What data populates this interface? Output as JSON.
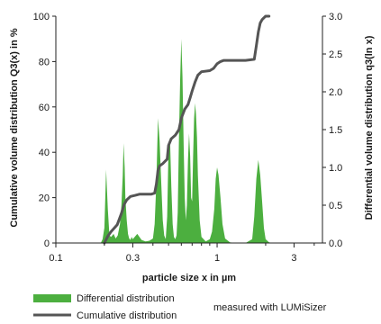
{
  "chart_data": {
    "type": "area",
    "title": "",
    "xlabel": "particle size x in µm",
    "ylabel_left": "Cumulative volume distribution Q3(x) in %",
    "ylabel_right": "Differential volume distribution q3(ln x)",
    "x_scale": "log",
    "xlim": [
      0.1,
      4.5
    ],
    "x_ticks": [
      0.1,
      0.3,
      1,
      3
    ],
    "x_tick_labels": [
      "0.1",
      "0.3",
      "1",
      "3"
    ],
    "ylim_left": [
      0,
      100
    ],
    "y_ticks_left": [
      0,
      20,
      40,
      60,
      80,
      100
    ],
    "y_tick_labels_left": [
      "0",
      "20",
      "40",
      "60",
      "80",
      "100"
    ],
    "ylim_right": [
      0,
      3.0
    ],
    "y_ticks_right": [
      0,
      0.5,
      1.0,
      1.5,
      2.0,
      2.5,
      3.0
    ],
    "y_tick_labels_right": [
      "0.0",
      "0.5",
      "1.0",
      "1.5",
      "2.0",
      "2.5",
      "3.0"
    ],
    "grid": false,
    "legend_position": "bottom-left",
    "annotation": "measured with LUMiSizer",
    "colors": {
      "differential": "#4caf3f",
      "cumulative": "#555555"
    },
    "series": [
      {
        "name": "Differential distribution",
        "axis": "right",
        "kind": "area",
        "x": [
          0.19,
          0.195,
          0.2,
          0.205,
          0.21,
          0.215,
          0.22,
          0.228,
          0.235,
          0.242,
          0.25,
          0.255,
          0.26,
          0.263,
          0.267,
          0.27,
          0.275,
          0.28,
          0.285,
          0.29,
          0.295,
          0.3,
          0.32,
          0.34,
          0.36,
          0.38,
          0.4,
          0.41,
          0.42,
          0.43,
          0.44,
          0.45,
          0.46,
          0.47,
          0.48,
          0.49,
          0.5,
          0.51,
          0.52,
          0.53,
          0.54,
          0.55,
          0.56,
          0.57,
          0.58,
          0.59,
          0.6,
          0.61,
          0.62,
          0.63,
          0.64,
          0.65,
          0.66,
          0.67,
          0.68,
          0.69,
          0.7,
          0.71,
          0.72,
          0.73,
          0.74,
          0.75,
          0.76,
          0.78,
          0.8,
          0.85,
          0.9,
          0.93,
          0.96,
          0.98,
          1.0,
          1.02,
          1.05,
          1.08,
          1.12,
          1.2,
          1.3,
          1.5,
          1.65,
          1.7,
          1.75,
          1.8,
          1.85,
          1.9,
          1.95,
          2.0,
          2.1,
          2.2
        ],
        "y": [
          0.0,
          0.05,
          0.2,
          0.97,
          0.45,
          0.1,
          0.08,
          0.12,
          0.06,
          0.1,
          0.25,
          0.5,
          0.9,
          1.32,
          1.0,
          0.6,
          0.3,
          0.12,
          0.06,
          0.04,
          0.08,
          0.05,
          0.12,
          0.04,
          0.02,
          0.03,
          0.06,
          0.25,
          0.8,
          1.65,
          1.35,
          0.8,
          0.3,
          0.1,
          0.05,
          0.35,
          1.25,
          1.4,
          0.75,
          0.25,
          0.08,
          0.05,
          0.1,
          0.4,
          1.4,
          2.15,
          2.7,
          2.2,
          1.3,
          0.6,
          0.3,
          0.5,
          1.1,
          1.45,
          1.15,
          0.6,
          0.55,
          1.15,
          1.65,
          1.85,
          1.7,
          1.4,
          0.9,
          0.3,
          0.08,
          0.02,
          0.05,
          0.15,
          0.45,
          0.85,
          1.0,
          0.9,
          0.6,
          0.25,
          0.06,
          0.01,
          0.0,
          0.0,
          0.05,
          0.35,
          0.85,
          1.1,
          0.9,
          0.55,
          0.2,
          0.05,
          0.01,
          0.0
        ]
      },
      {
        "name": "Cumulative distribution",
        "axis": "left",
        "kind": "line",
        "x": [
          0.2,
          0.21,
          0.22,
          0.24,
          0.255,
          0.265,
          0.275,
          0.29,
          0.31,
          0.33,
          0.36,
          0.39,
          0.41,
          0.42,
          0.43,
          0.44,
          0.46,
          0.49,
          0.5,
          0.52,
          0.55,
          0.58,
          0.6,
          0.63,
          0.66,
          0.68,
          0.7,
          0.73,
          0.76,
          0.8,
          0.9,
          0.95,
          1.0,
          1.05,
          1.1,
          1.2,
          1.5,
          1.7,
          1.75,
          1.8,
          1.85,
          1.9,
          1.95,
          2.0,
          2.1
        ],
        "y": [
          0,
          3,
          5,
          8,
          13,
          17,
          19,
          20.5,
          21,
          21.5,
          21.5,
          21.5,
          22,
          26,
          32,
          34,
          35,
          37,
          43,
          46,
          47.5,
          50,
          55,
          59,
          61,
          64,
          67,
          71,
          74,
          75.5,
          76,
          77,
          79,
          80,
          80.5,
          80.5,
          80.5,
          81,
          87,
          93,
          97,
          98.5,
          99.3,
          100,
          100
        ]
      }
    ]
  },
  "legend": {
    "items": [
      {
        "label": "Differential distribution",
        "color": "#4caf3f",
        "kind": "patch"
      },
      {
        "label": "Cumulative distribution",
        "color": "#555555",
        "kind": "line"
      }
    ]
  },
  "annotation": {
    "text": "measured with LUMiSizer"
  }
}
